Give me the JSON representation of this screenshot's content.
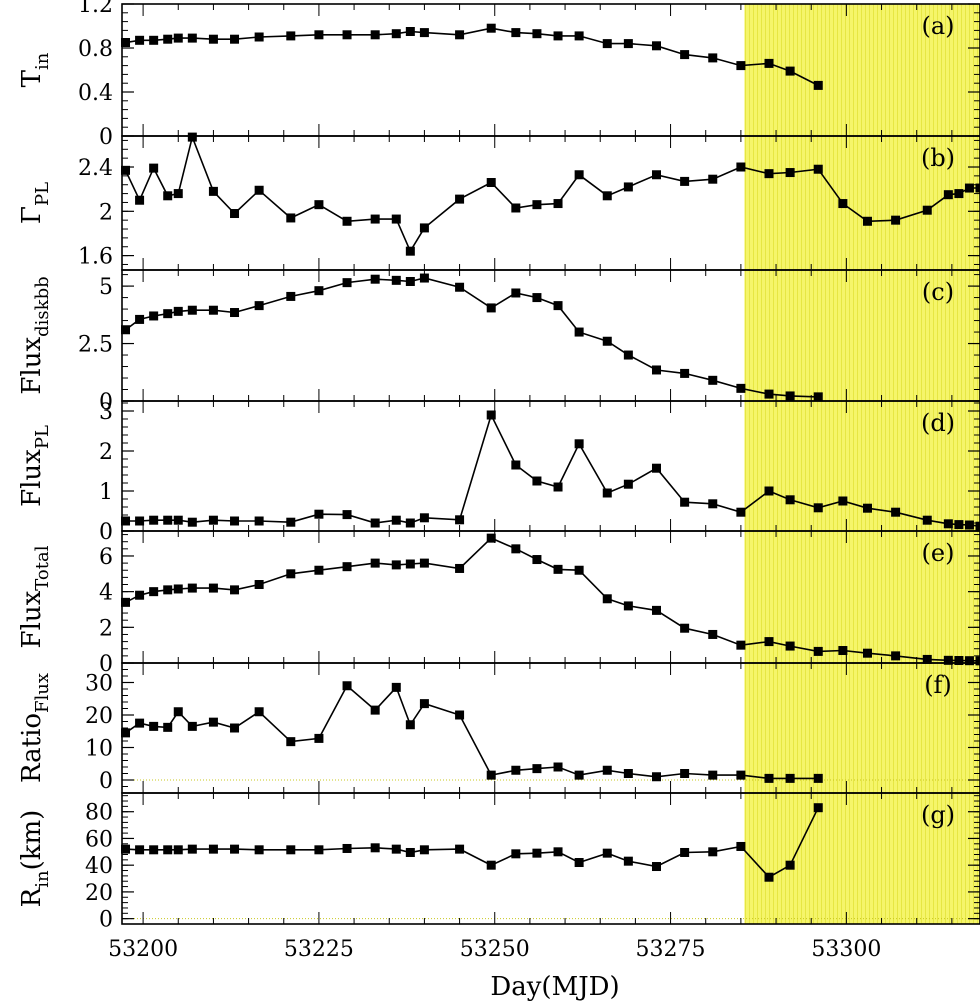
{
  "chart_data": {
    "type": "line",
    "xlabel": "Day(MJD)",
    "xlim": [
      53197,
      53319
    ],
    "x_ticks": [
      "53200",
      "53225",
      "53250",
      "53275",
      "53300"
    ],
    "highlight": {
      "x_from": 53285.5,
      "x_to": 53319,
      "color": "#f5f56a"
    },
    "panels": [
      {
        "tag": "(a)",
        "ylabel": {
          "main": "T",
          "sub": "in"
        },
        "ylim": [
          0,
          1.2
        ],
        "yticks": [
          0,
          0.4,
          0.8,
          1.2
        ],
        "ytick_labels": [
          "0",
          "0.4",
          "0.8",
          "1.2"
        ],
        "x": [
          53197.5,
          53199.5,
          53201.5,
          53203.5,
          53205,
          53207,
          53210,
          53213,
          53216.5,
          53221,
          53225,
          53229,
          53233,
          53236,
          53238,
          53240,
          53245,
          53249.5,
          53253,
          53256,
          53259,
          53262,
          53266,
          53269,
          53273,
          53277,
          53281,
          53285,
          53289,
          53292,
          53296
        ],
        "y": [
          0.85,
          0.87,
          0.87,
          0.88,
          0.89,
          0.89,
          0.88,
          0.88,
          0.9,
          0.91,
          0.92,
          0.92,
          0.92,
          0.93,
          0.95,
          0.94,
          0.92,
          0.98,
          0.94,
          0.93,
          0.91,
          0.91,
          0.84,
          0.84,
          0.82,
          0.74,
          0.71,
          0.64,
          0.66,
          0.59,
          0.46
        ]
      },
      {
        "tag": "(b)",
        "ylabel": {
          "main": "Γ",
          "sub": "PL"
        },
        "ylim": [
          1.47,
          2.68
        ],
        "yticks": [
          1.6,
          2.0,
          2.4
        ],
        "ytick_labels": [
          "1.6",
          "2",
          "2.4"
        ],
        "x": [
          53197.5,
          53199.5,
          53201.5,
          53203.5,
          53205,
          53207,
          53210,
          53213,
          53216.5,
          53221,
          53225,
          53229,
          53233,
          53236,
          53238,
          53240,
          53245,
          53249.5,
          53253,
          53256,
          53259,
          53262,
          53266,
          53269,
          53273,
          53277,
          53281,
          53285,
          53289,
          53292,
          53296,
          53299.5,
          53303,
          53307,
          53311.5,
          53314.5,
          53316,
          53317.5,
          53319
        ],
        "y": [
          2.37,
          2.1,
          2.39,
          2.14,
          2.16,
          2.67,
          2.18,
          1.98,
          2.19,
          1.94,
          2.06,
          1.91,
          1.93,
          1.93,
          1.64,
          1.85,
          2.11,
          2.26,
          2.03,
          2.06,
          2.07,
          2.33,
          2.14,
          2.22,
          2.33,
          2.27,
          2.29,
          2.4,
          2.34,
          2.35,
          2.38,
          2.07,
          1.91,
          1.92,
          2.01,
          2.15,
          2.16,
          2.21,
          2.21
        ]
      },
      {
        "tag": "(c)",
        "ylabel": {
          "main": "Flux",
          "sub": "diskbb"
        },
        "ylim": [
          0,
          5.7
        ],
        "yticks": [
          0,
          2.5,
          5.0
        ],
        "ytick_labels": [
          "0",
          "2.5",
          "5"
        ],
        "x": [
          53197.5,
          53199.5,
          53201.5,
          53203.5,
          53205,
          53207,
          53210,
          53213,
          53216.5,
          53221,
          53225,
          53229,
          53233,
          53236,
          53238,
          53240,
          53245,
          53249.5,
          53253,
          53256,
          53259,
          53262,
          53266,
          53269,
          53273,
          53277,
          53281,
          53285,
          53289,
          53292,
          53296
        ],
        "y": [
          3.1,
          3.55,
          3.7,
          3.8,
          3.9,
          3.95,
          3.95,
          3.85,
          4.15,
          4.55,
          4.8,
          5.15,
          5.3,
          5.25,
          5.2,
          5.35,
          4.95,
          4.05,
          4.7,
          4.5,
          4.15,
          3.0,
          2.6,
          2.0,
          1.35,
          1.2,
          0.9,
          0.55,
          0.3,
          0.22,
          0.18
        ]
      },
      {
        "tag": "(d)",
        "ylabel": {
          "main": "Flux",
          "sub": "PL"
        },
        "ylim": [
          0,
          3.25
        ],
        "yticks": [
          0,
          1,
          2,
          3
        ],
        "ytick_labels": [
          "0",
          "1",
          "2",
          "3"
        ],
        "x": [
          53197.5,
          53199.5,
          53201.5,
          53203.5,
          53205,
          53207,
          53210,
          53213,
          53216.5,
          53221,
          53225,
          53229,
          53233,
          53236,
          53238,
          53240,
          53245,
          53249.5,
          53253,
          53256,
          53259,
          53262,
          53266,
          53269,
          53273,
          53277,
          53281,
          53285,
          53289,
          53292,
          53296,
          53299.5,
          53303,
          53307,
          53311.5,
          53314.5,
          53316,
          53317.5,
          53319
        ],
        "y": [
          0.25,
          0.25,
          0.27,
          0.27,
          0.27,
          0.22,
          0.27,
          0.25,
          0.25,
          0.22,
          0.42,
          0.41,
          0.2,
          0.27,
          0.2,
          0.33,
          0.28,
          2.9,
          1.65,
          1.25,
          1.1,
          2.18,
          0.95,
          1.17,
          1.57,
          0.72,
          0.68,
          0.47,
          1.0,
          0.78,
          0.58,
          0.75,
          0.57,
          0.47,
          0.27,
          0.18,
          0.16,
          0.15,
          0.12
        ]
      },
      {
        "tag": "(e)",
        "ylabel": {
          "main": "Flux",
          "sub": "Total"
        },
        "ylim": [
          0,
          7.4
        ],
        "yticks": [
          0,
          2,
          4,
          6
        ],
        "ytick_labels": [
          "0",
          "2",
          "4",
          "6"
        ],
        "x": [
          53197.5,
          53199.5,
          53201.5,
          53203.5,
          53205,
          53207,
          53210,
          53213,
          53216.5,
          53221,
          53225,
          53229,
          53233,
          53236,
          53238,
          53240,
          53245,
          53249.5,
          53253,
          53256,
          53259,
          53262,
          53266,
          53269,
          53273,
          53277,
          53281,
          53285,
          53289,
          53292,
          53296,
          53299.5,
          53303,
          53307,
          53311.5,
          53314.5,
          53316,
          53317.5,
          53319
        ],
        "y": [
          3.4,
          3.8,
          4.0,
          4.1,
          4.15,
          4.2,
          4.2,
          4.1,
          4.4,
          5.0,
          5.2,
          5.4,
          5.6,
          5.5,
          5.55,
          5.6,
          5.3,
          7.0,
          6.4,
          5.8,
          5.25,
          5.2,
          3.6,
          3.2,
          2.95,
          1.95,
          1.6,
          1.0,
          1.2,
          0.95,
          0.65,
          0.7,
          0.55,
          0.4,
          0.2,
          0.15,
          0.14,
          0.13,
          0.12
        ]
      },
      {
        "tag": "(f)",
        "ylabel": {
          "main": "Ratio",
          "sub": "Flux"
        },
        "ylim": [
          -4,
          36
        ],
        "yticks": [
          0,
          10,
          20,
          30
        ],
        "ytick_labels": [
          "0",
          "10",
          "20",
          "30"
        ],
        "x": [
          53197.5,
          53199.5,
          53201.5,
          53203.5,
          53205,
          53207,
          53210,
          53213,
          53216.5,
          53221,
          53225,
          53229,
          53233,
          53236,
          53238,
          53240,
          53245,
          53249.5,
          53253,
          53256,
          53259,
          53262,
          53266,
          53269,
          53273,
          53277,
          53281,
          53285,
          53289,
          53292,
          53296
        ],
        "y": [
          14.5,
          17.5,
          16.5,
          16.2,
          21.0,
          16.5,
          17.8,
          16.0,
          21.0,
          11.8,
          12.8,
          29.0,
          21.5,
          28.5,
          17.0,
          23.5,
          20.0,
          1.5,
          3.0,
          3.5,
          4.0,
          1.5,
          3.0,
          2.0,
          1.0,
          2.0,
          1.5,
          1.5,
          0.5,
          0.5,
          0.5
        ]
      },
      {
        "tag": "(g)",
        "ylabel": {
          "main": "R",
          "sub": "in",
          "unit": "(km)"
        },
        "ylim": [
          -4,
          94
        ],
        "yticks": [
          0,
          20,
          40,
          60,
          80
        ],
        "ytick_labels": [
          "0",
          "20",
          "40",
          "60",
          "80"
        ],
        "x": [
          53197.5,
          53199.5,
          53201.5,
          53203.5,
          53205,
          53207,
          53210,
          53213,
          53216.5,
          53221,
          53225,
          53229,
          53233,
          53236,
          53238,
          53240,
          53245,
          53249.5,
          53253,
          53256,
          53259,
          53262,
          53266,
          53269,
          53273,
          53277,
          53281,
          53285,
          53289,
          53292,
          53296
        ],
        "y": [
          52,
          51.5,
          51.5,
          51.5,
          51.5,
          52,
          52,
          52,
          51.5,
          51.5,
          51.5,
          52.5,
          53,
          52,
          49.5,
          51.5,
          52,
          40,
          48.5,
          49,
          50,
          42,
          49,
          43,
          39,
          49.5,
          50,
          54,
          31,
          40,
          83
        ]
      }
    ]
  }
}
